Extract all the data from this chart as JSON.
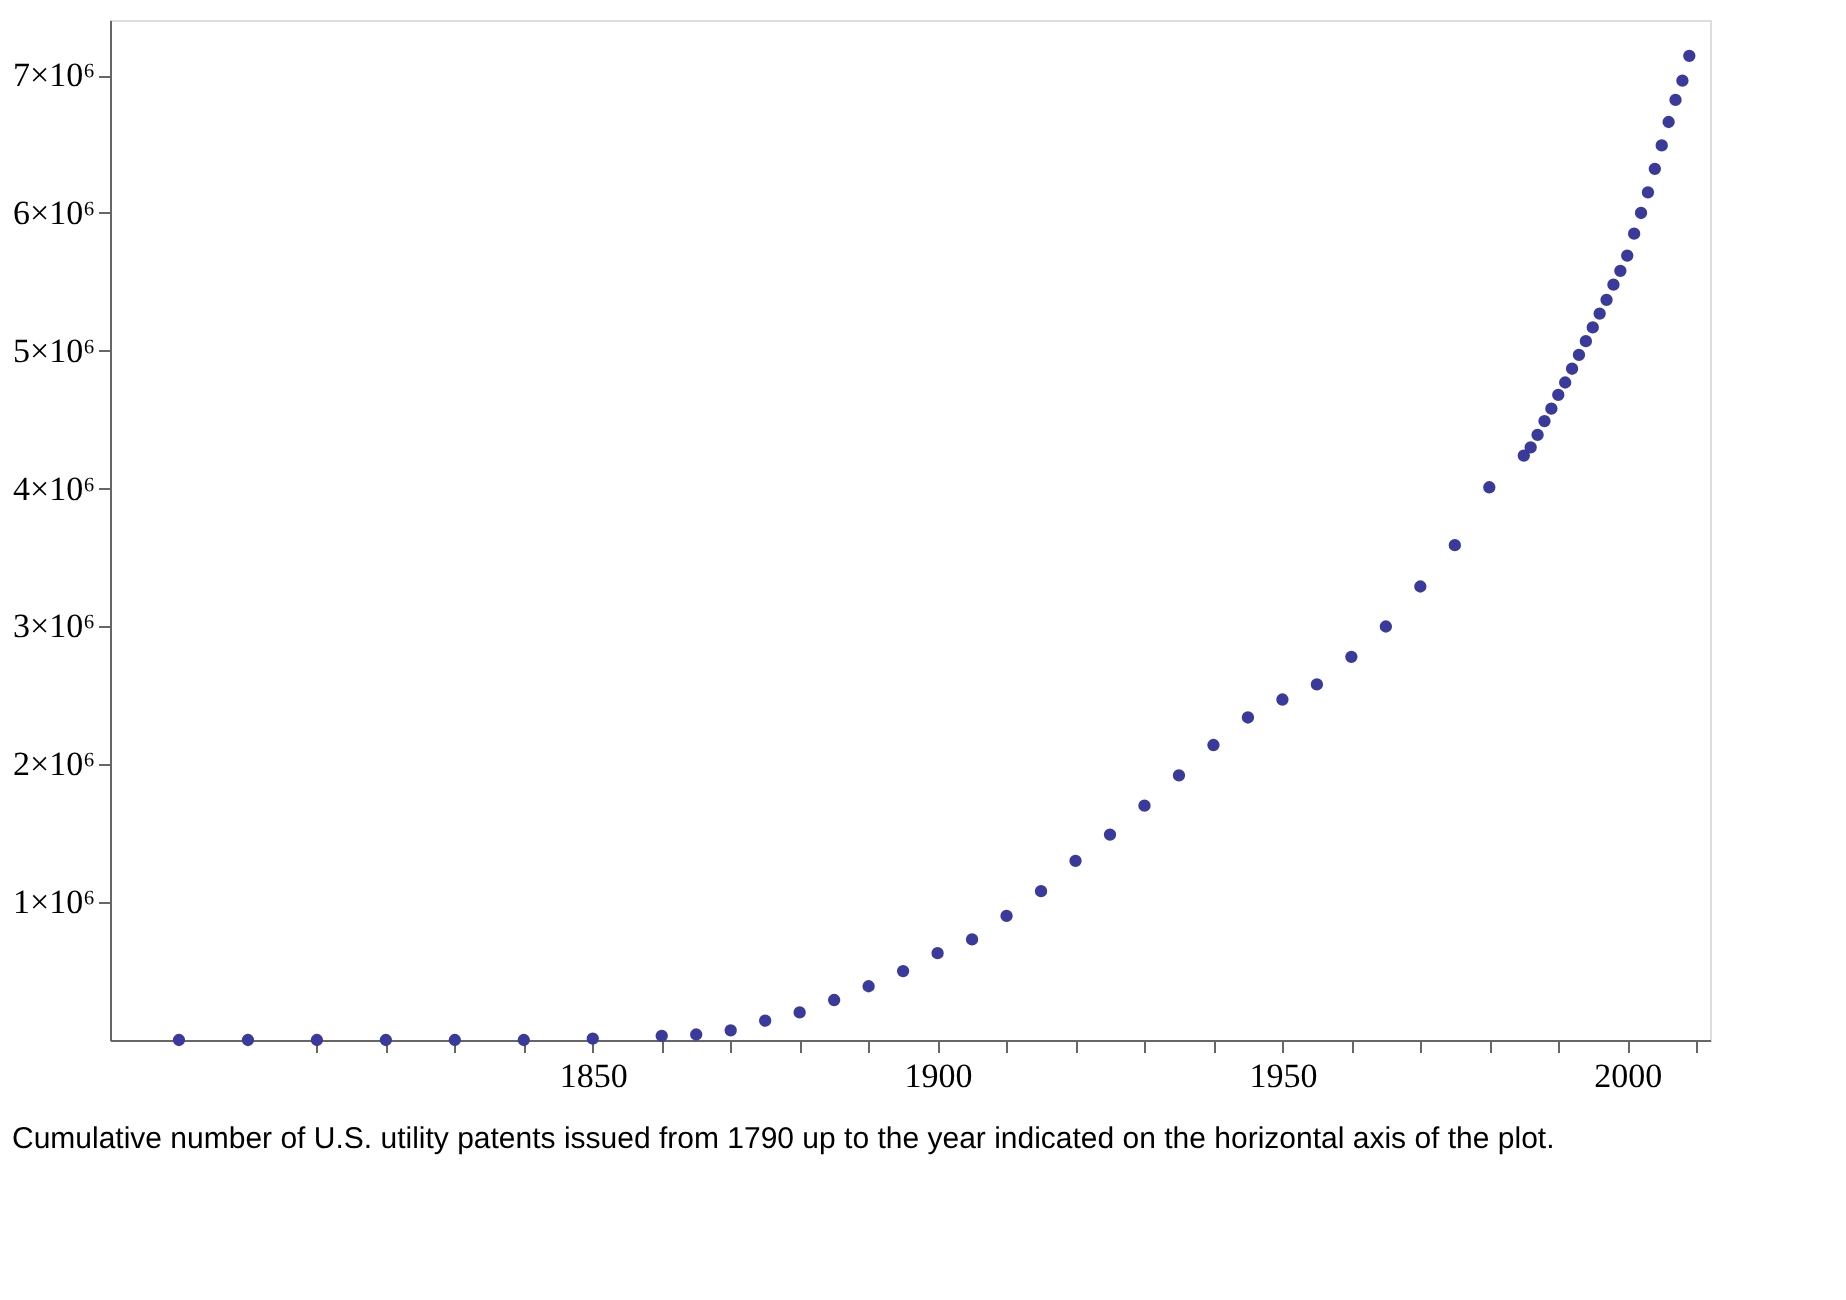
{
  "chart_data": {
    "type": "scatter",
    "marker": "circle",
    "grid": false,
    "legend": false,
    "x": [
      1790,
      1800,
      1810,
      1820,
      1830,
      1840,
      1850,
      1860,
      1865,
      1870,
      1875,
      1880,
      1885,
      1890,
      1895,
      1900,
      1905,
      1910,
      1915,
      1920,
      1925,
      1930,
      1935,
      1940,
      1945,
      1950,
      1955,
      1960,
      1965,
      1970,
      1975,
      1980,
      1985,
      1986,
      1987,
      1988,
      1989,
      1990,
      1991,
      1992,
      1993,
      1994,
      1995,
      1996,
      1997,
      1998,
      1999,
      2000,
      2001,
      2002,
      2003,
      2004,
      2005,
      2006,
      2007,
      2008,
      2009
    ],
    "series": [
      {
        "color": "#3a3a9c",
        "values": [
          0,
          0,
          0,
          0,
          0,
          0,
          10000,
          30000,
          40000,
          70000,
          140000,
          200000,
          290000,
          390000,
          500000,
          630000,
          730000,
          900000,
          1080000,
          1300000,
          1490000,
          1700000,
          1920000,
          2140000,
          2340000,
          2470000,
          2580000,
          2780000,
          3000000,
          3290000,
          3590000,
          4010000,
          4240000,
          4300000,
          4390000,
          4490000,
          4580000,
          4680000,
          4770000,
          4870000,
          4970000,
          5070000,
          5170000,
          5270000,
          5370000,
          5480000,
          5580000,
          5690000,
          5850000,
          6000000,
          6150000,
          6320000,
          6490000,
          6660000,
          6820000,
          6960000,
          7140000
        ]
      }
    ],
    "xlim": [
      1780,
      2012
    ],
    "ylim": [
      0,
      7400000
    ],
    "xticks": [
      {
        "value": 1810,
        "label": null
      },
      {
        "value": 1820,
        "label": null
      },
      {
        "value": 1830,
        "label": null
      },
      {
        "value": 1840,
        "label": null
      },
      1850,
      {
        "value": 1860,
        "label": null
      },
      {
        "value": 1870,
        "label": null
      },
      {
        "value": 1880,
        "label": null
      },
      {
        "value": 1890,
        "label": null
      },
      1900,
      {
        "value": 1910,
        "label": null
      },
      {
        "value": 1920,
        "label": null
      },
      {
        "value": 1930,
        "label": null
      },
      {
        "value": 1940,
        "label": null
      },
      1950,
      {
        "value": 1960,
        "label": null
      },
      {
        "value": 1970,
        "label": null
      },
      {
        "value": 1980,
        "label": null
      },
      {
        "value": 1990,
        "label": null
      },
      2000,
      {
        "value": 2010,
        "label": null
      }
    ],
    "yticks": [
      {
        "value": 1000000,
        "label": "1×10⁶"
      },
      {
        "value": 2000000,
        "label": "2×10⁶"
      },
      {
        "value": 3000000,
        "label": "3×10⁶"
      },
      {
        "value": 4000000,
        "label": "4×10⁶"
      },
      {
        "value": 5000000,
        "label": "5×10⁶"
      },
      {
        "value": 6000000,
        "label": "6×10⁶"
      },
      {
        "value": 7000000,
        "label": "7×10⁶"
      }
    ],
    "annotations": [
      "Cumulative number of U.S. utility patents issued from 1790 up to the year indicated on the horizontal axis of the plot."
    ]
  }
}
